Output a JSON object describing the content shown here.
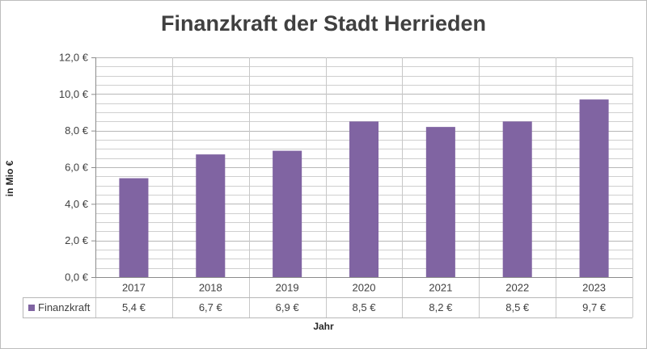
{
  "chart_data": {
    "type": "bar",
    "title": "Finanzkraft der Stadt Herrieden",
    "xlabel": "Jahr",
    "ylabel": "in Mio €",
    "categories": [
      "2017",
      "2018",
      "2019",
      "2020",
      "2021",
      "2022",
      "2023"
    ],
    "series": [
      {
        "name": "Finanzkraft",
        "values": [
          5.4,
          6.7,
          6.9,
          8.5,
          8.2,
          8.5,
          9.7
        ],
        "value_labels": [
          "5,4 €",
          "6,7 €",
          "6,9 €",
          "8,5 €",
          "8,2 €",
          "8,5 €",
          "9,7 €"
        ],
        "color": "#8064a2"
      }
    ],
    "ylim": [
      0,
      12
    ],
    "y_ticks": [
      0,
      2,
      4,
      6,
      8,
      10,
      12
    ],
    "y_tick_labels": [
      "0,0 €",
      "2,0 €",
      "4,0 €",
      "6,0 €",
      "8,0 €",
      "10,0 €",
      "12,0 €"
    ],
    "grid": true,
    "legend": "data-table",
    "data_table": true
  }
}
